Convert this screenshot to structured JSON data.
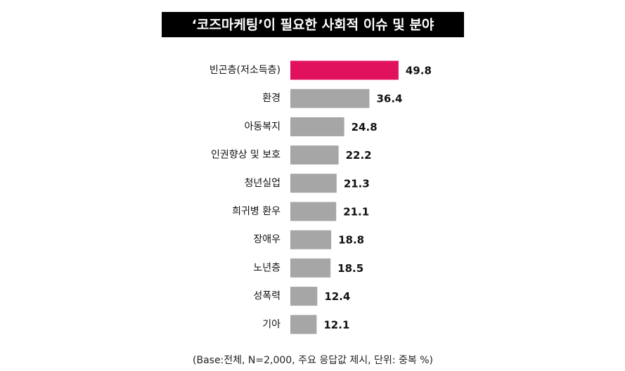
{
  "chart_data": {
    "type": "barh",
    "title": "‘코즈마케팅’이 필요한 사회적 이슈 및 분야",
    "categories": [
      "빈곤층(저소득층)",
      "환경",
      "아동복지",
      "인권향상 및 보호",
      "청년실업",
      "희귀병 환우",
      "장애우",
      "노년층",
      "성폭력",
      "기아"
    ],
    "values": [
      49.8,
      36.4,
      24.8,
      22.2,
      21.3,
      21.1,
      18.8,
      18.5,
      12.4,
      12.1
    ],
    "colors": [
      "#e2115d",
      "#a6a6a6",
      "#a6a6a6",
      "#a6a6a6",
      "#a6a6a6",
      "#a6a6a6",
      "#a6a6a6",
      "#a6a6a6",
      "#a6a6a6",
      "#a6a6a6"
    ],
    "note": "(Base:전체, N=2,000, 주요 응답값 제시, 단위: 중복 %)"
  }
}
